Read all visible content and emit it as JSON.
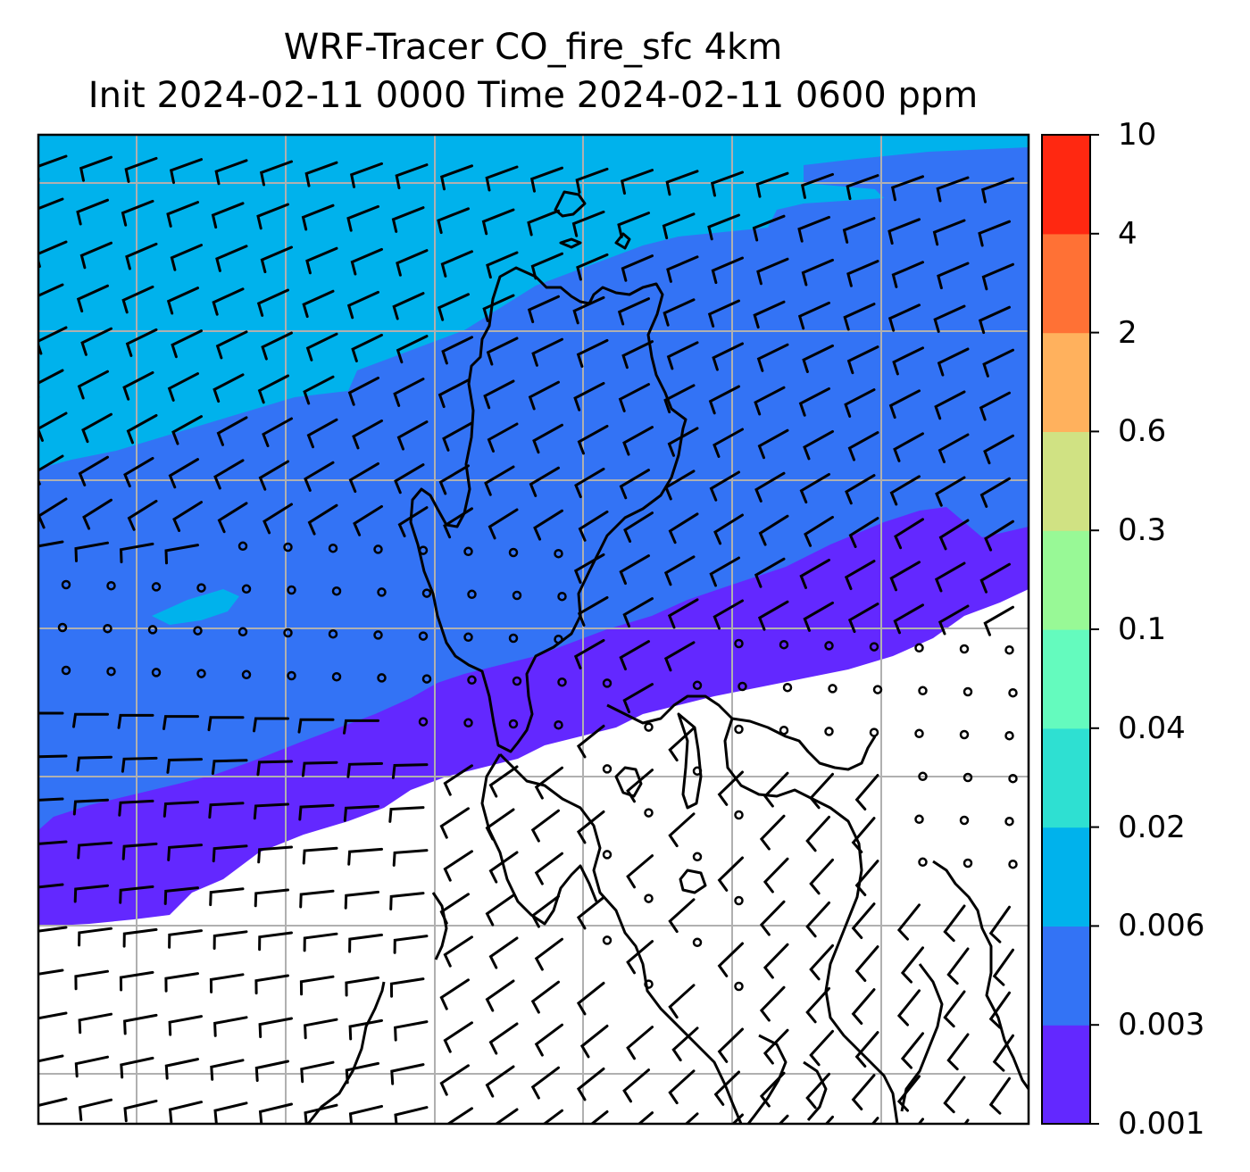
{
  "title": {
    "line1": "WRF-Tracer CO_fire_sfc 4km",
    "line2": "Init 2024-02-11 0000 Time 2024-02-11 0600 ppm"
  },
  "colorbar": {
    "levels": [
      "0.001",
      "0.003",
      "0.006",
      "0.02",
      "0.04",
      "0.1",
      "0.3",
      "0.6",
      "2",
      "4",
      "10"
    ],
    "colors": [
      "#6328ff",
      "#3373f5",
      "#00b2ec",
      "#2ee0d2",
      "#64fbbe",
      "#98f996",
      "#d0e283",
      "#ffb15d",
      "#ff7135",
      "#ff2811"
    ]
  },
  "colors": {
    "lowest_band": "#6328ff",
    "mid_band": "#3373f5",
    "upper_band": "#00b2ec",
    "below_threshold": "#ffffff",
    "coastline": "#000000",
    "gridline": "#b0b0b0"
  },
  "map": {
    "field": "CO_fire_sfc",
    "gridlines": "on",
    "wind_symbols": "barbs and calm circles"
  }
}
